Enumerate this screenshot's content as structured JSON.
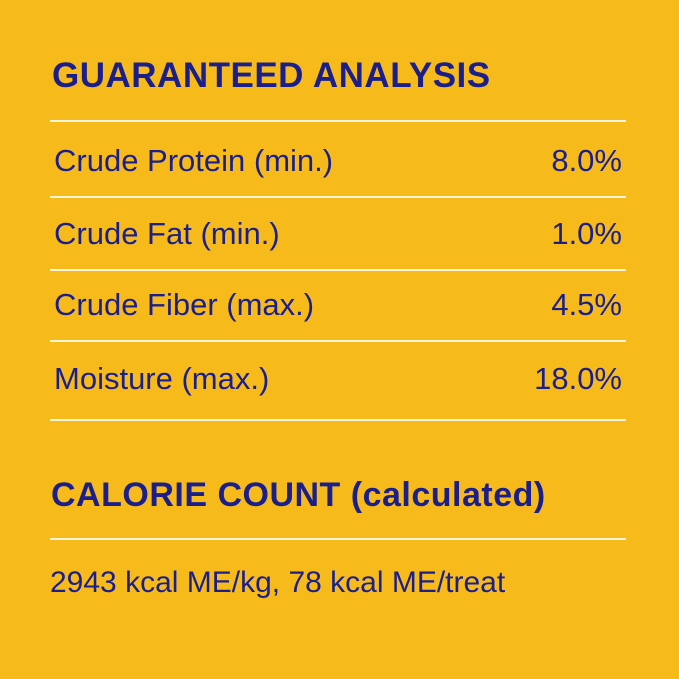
{
  "title": "GUARANTEED ANALYSIS",
  "rows": [
    {
      "label": "Crude Protein (min.)",
      "value": "8.0%"
    },
    {
      "label": "Crude Fat (min.)",
      "value": "1.0%"
    },
    {
      "label": "Crude Fiber (max.)",
      "value": "4.5%"
    },
    {
      "label": "Moisture (max.)",
      "value": "18.0%"
    }
  ],
  "calorie_title": "CALORIE COUNT (calculated)",
  "calorie_text": "2943 kcal ME/kg, 78 kcal ME/treat",
  "colors": {
    "background": "#f6bb1b",
    "text": "#1a1f8c",
    "rule": "#fff5d8"
  }
}
